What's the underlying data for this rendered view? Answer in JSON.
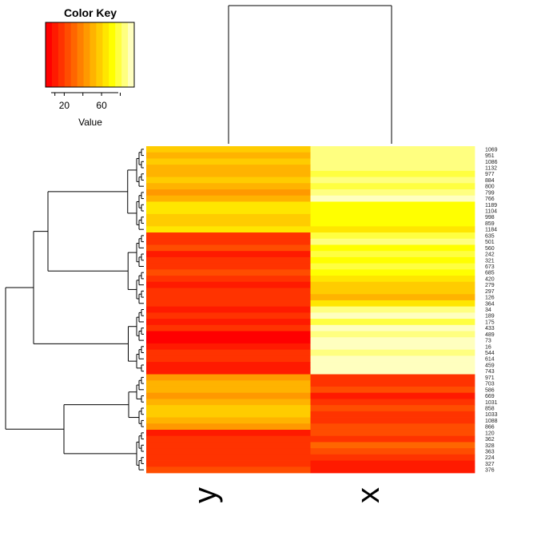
{
  "chart_data": {
    "type": "heatmap",
    "columns": [
      "y",
      "x"
    ],
    "row_labels": [
      "1069",
      "951",
      "1086",
      "1132",
      "977",
      "884",
      "800",
      "799",
      "766",
      "1189",
      "1104",
      "998",
      "859",
      "1184",
      "635",
      "501",
      "560",
      "242",
      "321",
      "673",
      "685",
      "420",
      "279",
      "297",
      "126",
      "364",
      "34",
      "189",
      "175",
      "433",
      "489",
      "73",
      "16",
      "544",
      "614",
      "459",
      "743",
      "971",
      "703",
      "586",
      "669",
      "1031",
      "858",
      "1033",
      "1088",
      "866",
      "120",
      "362",
      "328",
      "363",
      "224",
      "327",
      "376"
    ],
    "values": [
      [
        55,
        85
      ],
      [
        50,
        88
      ],
      [
        58,
        82
      ],
      [
        52,
        86
      ],
      [
        48,
        80
      ],
      [
        60,
        84
      ],
      [
        54,
        78
      ],
      [
        46,
        82
      ],
      [
        52,
        90
      ],
      [
        66,
        70
      ],
      [
        62,
        74
      ],
      [
        58,
        68
      ],
      [
        60,
        72
      ],
      [
        64,
        66
      ],
      [
        20,
        78
      ],
      [
        16,
        82
      ],
      [
        24,
        74
      ],
      [
        12,
        80
      ],
      [
        18,
        70
      ],
      [
        14,
        76
      ],
      [
        22,
        72
      ],
      [
        20,
        66
      ],
      [
        10,
        60
      ],
      [
        14,
        56
      ],
      [
        18,
        52
      ],
      [
        16,
        62
      ],
      [
        10,
        86
      ],
      [
        14,
        90
      ],
      [
        8,
        80
      ],
      [
        16,
        92
      ],
      [
        6,
        84
      ],
      [
        4,
        96
      ],
      [
        8,
        94
      ],
      [
        14,
        88
      ],
      [
        18,
        98
      ],
      [
        12,
        92
      ],
      [
        10,
        99
      ],
      [
        42,
        20
      ],
      [
        48,
        16
      ],
      [
        54,
        24
      ],
      [
        46,
        12
      ],
      [
        52,
        18
      ],
      [
        56,
        22
      ],
      [
        60,
        16
      ],
      [
        50,
        20
      ],
      [
        44,
        26
      ],
      [
        12,
        24
      ],
      [
        16,
        18
      ],
      [
        20,
        28
      ],
      [
        14,
        22
      ],
      [
        18,
        14
      ],
      [
        16,
        8
      ],
      [
        24,
        12
      ]
    ],
    "color_scale": [
      "#ff0000",
      "#ff1a00",
      "#ff3300",
      "#ff4d00",
      "#ff6600",
      "#ff8000",
      "#ff9900",
      "#ffb300",
      "#ffcc00",
      "#ffe600",
      "#ffff00",
      "#ffff40",
      "#ffff80",
      "#ffffbf"
    ],
    "key": {
      "title": "Color Key",
      "xlabel": "Value",
      "range": [
        0,
        95
      ],
      "ticks": [
        20,
        60
      ]
    }
  }
}
